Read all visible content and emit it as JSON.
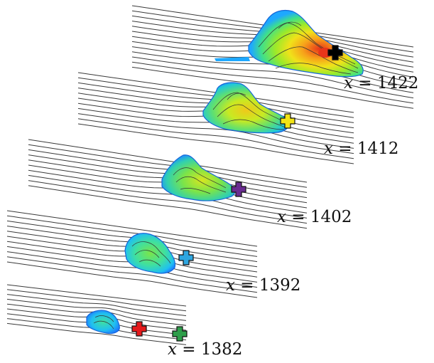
{
  "slices": [
    {
      "id": "s1422",
      "var": "x",
      "value": "1422",
      "markers": [
        {
          "name": "black-cross-marker",
          "color": "#000000"
        }
      ]
    },
    {
      "id": "s1412",
      "var": "x",
      "value": "1412",
      "markers": [
        {
          "name": "yellow-cross-marker",
          "color": "#f2e416"
        }
      ]
    },
    {
      "id": "s1402",
      "var": "x",
      "value": "1402",
      "markers": [
        {
          "name": "purple-cross-marker",
          "color": "#6a2c91"
        }
      ]
    },
    {
      "id": "s1392",
      "var": "x",
      "value": "1392",
      "markers": [
        {
          "name": "blue-cross-marker",
          "color": "#2ea6e0"
        }
      ]
    },
    {
      "id": "s1382",
      "var": "x",
      "value": "1382",
      "markers": [
        {
          "name": "red-cross-marker",
          "color": "#e41a1c"
        },
        {
          "name": "green-cross-marker",
          "color": "#2e9e4a"
        }
      ]
    }
  ],
  "colormap": [
    "#1e90ff",
    "#20c8ff",
    "#3fe08a",
    "#9bea2a",
    "#f0e21a",
    "#f7a21a",
    "#e8351a"
  ]
}
